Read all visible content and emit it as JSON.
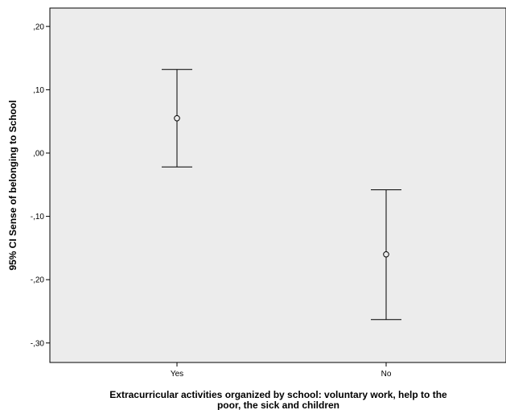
{
  "chart_data": {
    "type": "errorbar",
    "xlabel_lines": [
      "Extracurricular activities organized by school: voluntary work, help to the",
      "poor, the sick and children"
    ],
    "ylabel": "95% CI Sense of belonging to School",
    "categories": [
      "Yes",
      "No"
    ],
    "series": [
      {
        "mean": [
          0.055,
          -0.16
        ],
        "ci_lower": [
          -0.022,
          -0.263
        ],
        "ci_upper": [
          0.132,
          -0.058
        ]
      }
    ],
    "y_ticks": [
      0.2,
      0.1,
      0.0,
      -0.1,
      -0.2,
      -0.3
    ],
    "y_tick_labels": [
      ",20",
      ",10",
      ",00",
      "-,10",
      "-,20",
      "-,30"
    ],
    "ylim": [
      -0.33,
      0.23
    ],
    "grid": false,
    "plot_background": "#ececec"
  }
}
